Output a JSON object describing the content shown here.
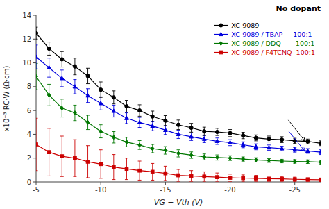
{
  "chart_data": {
    "type": "line",
    "xlabel": "VG − Vth (V)",
    "ylabel": "x10⁻³ RC·W (Ω·cm)",
    "xlim": [
      -5,
      -27
    ],
    "ylim": [
      0,
      14
    ],
    "xticks": [
      -5,
      -10,
      -15,
      -20,
      -25
    ],
    "yticks": [
      0,
      2,
      4,
      6,
      8,
      10,
      12,
      14
    ],
    "x": [
      -5,
      -6,
      -7,
      -8,
      -9,
      -10,
      -11,
      -12,
      -13,
      -14,
      -15,
      -16,
      -17,
      -18,
      -19,
      -20,
      -21,
      -22,
      -23,
      -24,
      -25,
      -26,
      -27
    ],
    "series": [
      {
        "name": "XC-9089",
        "color": "#000000",
        "marker": "circle",
        "line_style": "solid",
        "values": [
          12.5,
          11.2,
          10.3,
          9.7,
          8.9,
          7.75,
          7.1,
          6.35,
          6.0,
          5.5,
          5.15,
          4.8,
          4.55,
          4.25,
          4.2,
          4.1,
          3.9,
          3.7,
          3.6,
          3.55,
          3.45,
          3.4,
          3.25
        ],
        "errors": [
          0.5,
          0.55,
          0.65,
          0.7,
          0.65,
          0.65,
          0.55,
          0.5,
          0.48,
          0.45,
          0.42,
          0.4,
          0.37,
          0.35,
          0.3,
          0.3,
          0.27,
          0.25,
          0.25,
          0.25,
          0.22,
          0.2,
          0.2
        ]
      },
      {
        "name": "XC-9089 / TBAP     100:1",
        "color": "#0000dd",
        "marker": "triangle",
        "line_style": "solid",
        "values": [
          10.5,
          9.6,
          8.7,
          8.0,
          7.25,
          6.6,
          5.95,
          5.35,
          5.0,
          4.7,
          4.35,
          4.0,
          3.8,
          3.6,
          3.42,
          3.3,
          3.12,
          2.95,
          2.88,
          2.8,
          2.7,
          2.6,
          2.5
        ],
        "errors": [
          1.0,
          0.8,
          0.7,
          0.6,
          0.58,
          0.55,
          0.5,
          0.45,
          0.42,
          0.4,
          0.37,
          0.35,
          0.32,
          0.3,
          0.27,
          0.25,
          0.25,
          0.25,
          0.22,
          0.2,
          0.2,
          0.2,
          0.2
        ]
      },
      {
        "name": "XC-9089 / DDQ       100:1",
        "color": "#007700",
        "marker": "diamond",
        "line_style": "solid",
        "values": [
          8.85,
          7.3,
          6.2,
          5.8,
          5.0,
          4.25,
          3.75,
          3.35,
          3.1,
          2.8,
          2.65,
          2.4,
          2.25,
          2.1,
          2.05,
          2.0,
          1.92,
          1.85,
          1.8,
          1.75,
          1.72,
          1.7,
          1.65
        ],
        "errors": [
          1.1,
          0.9,
          0.75,
          0.65,
          0.6,
          0.55,
          0.48,
          0.4,
          0.37,
          0.35,
          0.32,
          0.3,
          0.27,
          0.25,
          0.22,
          0.2,
          0.18,
          0.18,
          0.16,
          0.15,
          0.15,
          0.15,
          0.15
        ]
      },
      {
        "name": "XC-9089 / F4TCNQ  100:1",
        "color": "#cc0000",
        "marker": "square",
        "line_style": "solid",
        "values": [
          3.15,
          2.5,
          2.15,
          2.0,
          1.7,
          1.5,
          1.25,
          1.1,
          0.95,
          0.85,
          0.72,
          0.55,
          0.5,
          0.45,
          0.4,
          0.35,
          0.32,
          0.3,
          0.27,
          0.25,
          0.22,
          0.2,
          0.18
        ],
        "errors": [
          2.2,
          2.0,
          1.7,
          1.55,
          1.35,
          1.2,
          1.05,
          0.9,
          0.8,
          0.7,
          0.6,
          0.5,
          0.45,
          0.4,
          0.35,
          0.3,
          0.27,
          0.25,
          0.22,
          0.2,
          0.18,
          0.15,
          0.15
        ]
      }
    ],
    "annotations": [
      {
        "text": "No dopant"
      }
    ],
    "arrows": [
      {
        "x": [
          -24.5,
          -25.8
        ],
        "y": [
          5.2,
          3.4
        ],
        "color": "#000000"
      },
      {
        "x": [
          -24.5,
          -25.8
        ],
        "y": [
          4.3,
          2.55
        ],
        "color": "#0000dd"
      }
    ],
    "legend": "upper right",
    "grid": false
  }
}
